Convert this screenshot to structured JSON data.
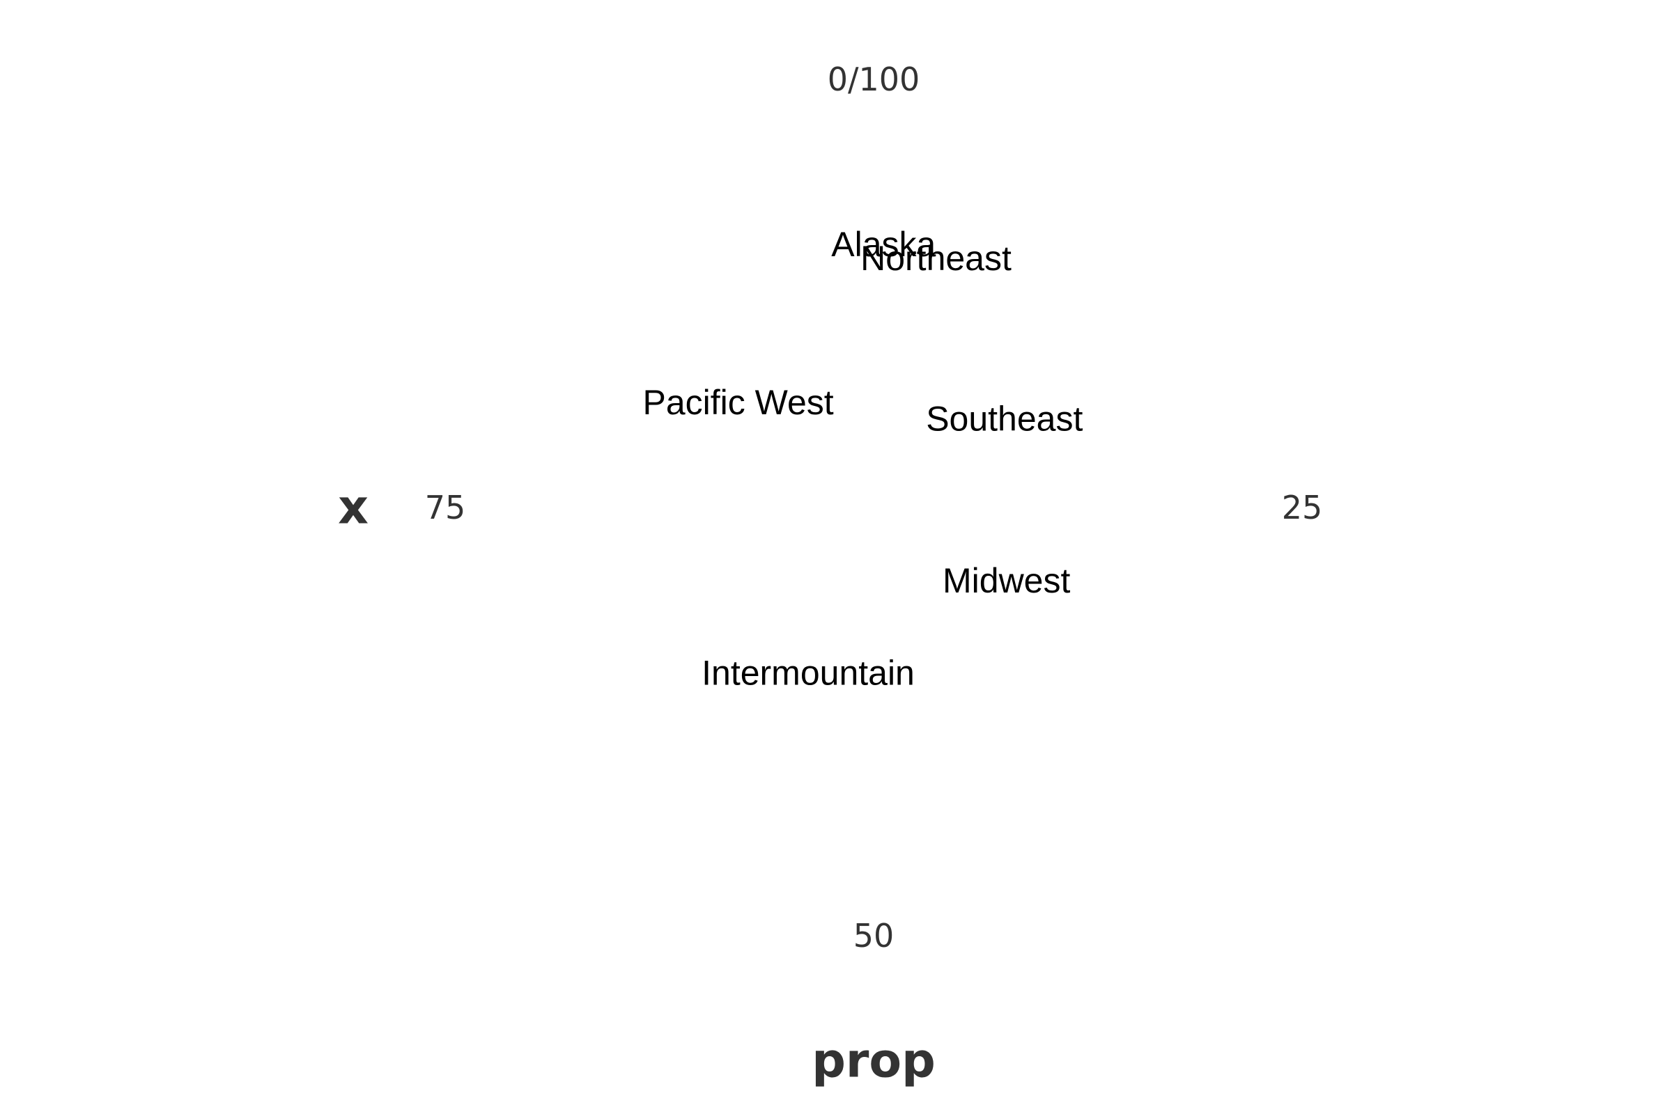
{
  "chart_data": {
    "type": "scatter",
    "coord": "polar",
    "theta_axis": {
      "title": "prop",
      "range": [
        0,
        100
      ],
      "direction": "clockwise",
      "start": "top",
      "ticks": [
        {
          "value": 0,
          "label": "0/100"
        },
        {
          "value": 25,
          "label": "25"
        },
        {
          "value": 50,
          "label": "50"
        },
        {
          "value": 75,
          "label": "75"
        }
      ]
    },
    "r_axis": {
      "title": "x",
      "ticks": []
    },
    "grid": false,
    "points": [
      {
        "label": "Alaska",
        "theta": 0.6,
        "r": 0.4
      },
      {
        "label": "Northeast",
        "theta": 3.9,
        "r": 0.39
      },
      {
        "label": "Pacific West",
        "theta": 85.5,
        "r": 0.26
      },
      {
        "label": "Southeast",
        "theta": 15.5,
        "r": 0.24
      },
      {
        "label": "Midwest",
        "theta": 33.0,
        "r": 0.23
      },
      {
        "label": "Intermountain",
        "theta": 56.0,
        "r": 0.27
      }
    ]
  }
}
